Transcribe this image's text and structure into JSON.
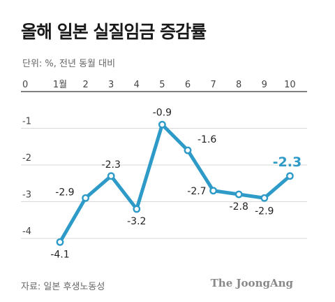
{
  "title": "올해 일본 실질임금 증감률",
  "subtitle": "단위: %, 전년 동월 대비",
  "source": "자료: 일본 후생노동성",
  "brand": "The JoongAng",
  "colors": {
    "line": "#2d9ac8",
    "highlight": "#2d9ac8",
    "grid": "#d9d9d9",
    "axis": "#333333"
  },
  "chart_data": {
    "type": "line",
    "categories": [
      "1월",
      "2",
      "3",
      "4",
      "5",
      "6",
      "7",
      "8",
      "9",
      "10"
    ],
    "values": [
      -4.1,
      -2.9,
      -2.3,
      -3.2,
      -0.9,
      -1.6,
      -2.7,
      -2.8,
      -2.9,
      -2.3
    ],
    "value_labels": [
      "-4.1",
      "-2.9",
      "-2.3",
      "-3.2",
      "-0.9",
      "-1.6",
      "-2.7",
      "-2.8",
      "-2.9",
      "-2.3"
    ],
    "y_ticks": [
      0,
      -1,
      -2,
      -3,
      -4
    ],
    "y_tick_labels": [
      "0",
      "-1",
      "-2",
      "-3",
      "-4"
    ],
    "ylim": [
      -4.5,
      0
    ],
    "grid": true,
    "x_axis_position": "top",
    "highlight_index": 9
  }
}
